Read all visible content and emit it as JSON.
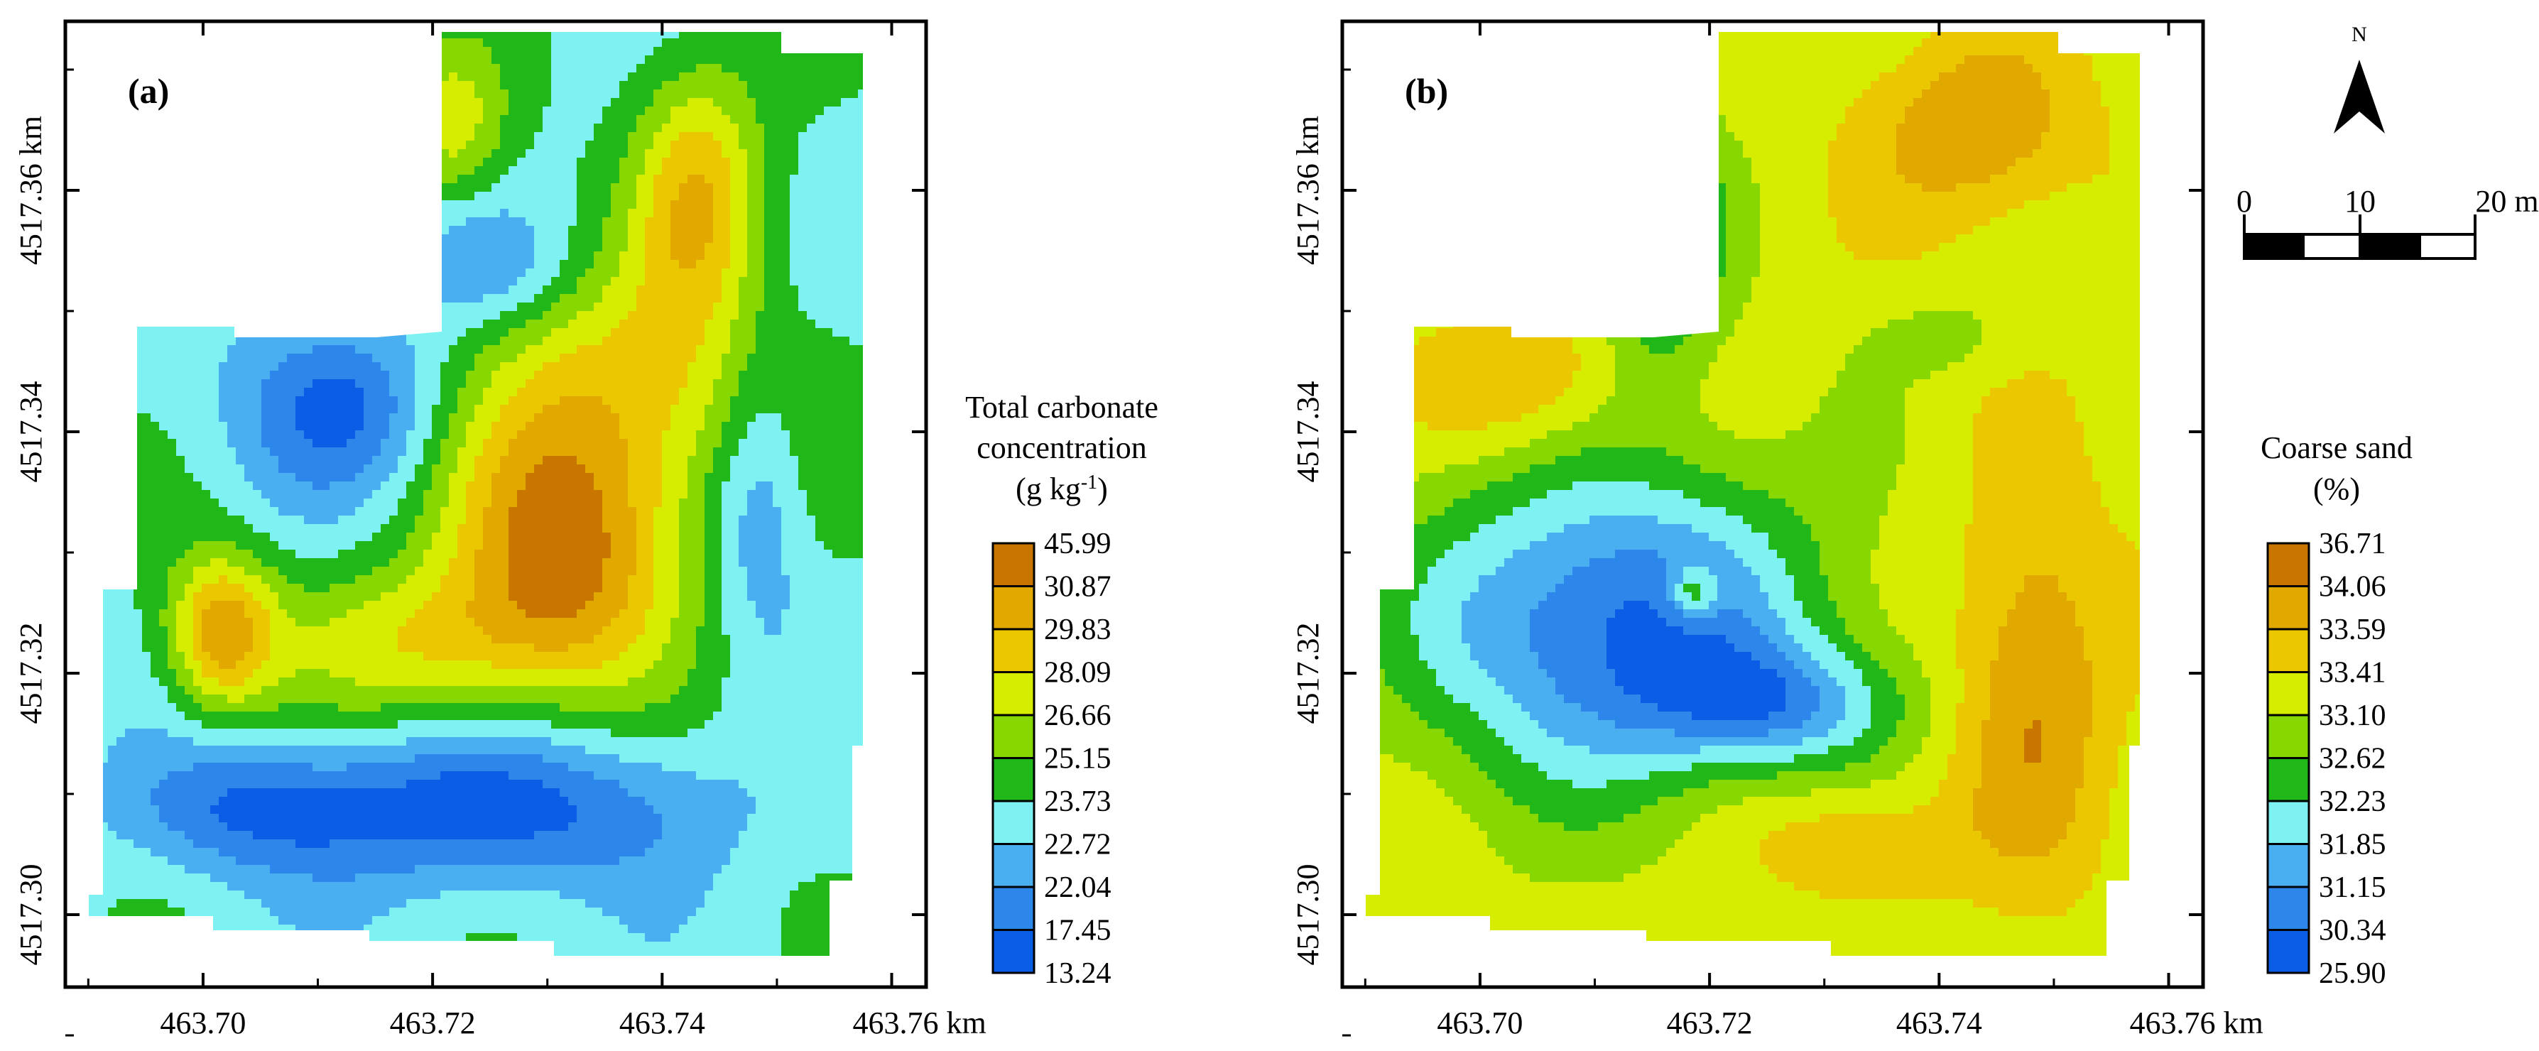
{
  "figure": {
    "palette": [
      "#0a5ee6",
      "#2d86ea",
      "#4aaff0",
      "#7ef2f2",
      "#20b818",
      "#86d800",
      "#d6ec00",
      "#eac700",
      "#e1a800",
      "#c97600"
    ],
    "x_axis": {
      "ticks": [
        "463.70",
        "463.72",
        "463.74",
        "463.76 km"
      ],
      "tick_values": [
        463.7,
        463.72,
        463.74,
        463.76
      ],
      "range": [
        463.688,
        463.763
      ]
    },
    "y_axis": {
      "ticks": [
        "4517.30",
        "4517.32",
        "4517.34",
        "4517.36 km"
      ],
      "tick_values": [
        4517.3,
        4517.32,
        4517.34,
        4517.36
      ],
      "range": [
        4517.294,
        4517.374
      ]
    }
  },
  "panels": [
    {
      "label": "(a)",
      "legend": {
        "title_lines": [
          "Total carbonate",
          "concentration"
        ],
        "unit_prefix": "(g kg",
        "unit_sup": "-1",
        "unit_suffix": ")",
        "values": [
          "45.99",
          "30.87",
          "29.83",
          "28.09",
          "26.66",
          "25.15",
          "23.73",
          "22.72",
          "22.04",
          "17.45",
          "13.24"
        ]
      }
    },
    {
      "label": "(b)",
      "legend": {
        "title_lines": [
          "Coarse sand",
          "(%)"
        ],
        "values": [
          "36.71",
          "34.06",
          "33.59",
          "33.41",
          "33.10",
          "32.62",
          "32.23",
          "31.85",
          "31.15",
          "30.34",
          "25.90"
        ]
      }
    }
  ],
  "north_arrow": {
    "label": "N"
  },
  "scale_bar": {
    "labels": [
      "0",
      "10",
      "20 m"
    ]
  }
}
